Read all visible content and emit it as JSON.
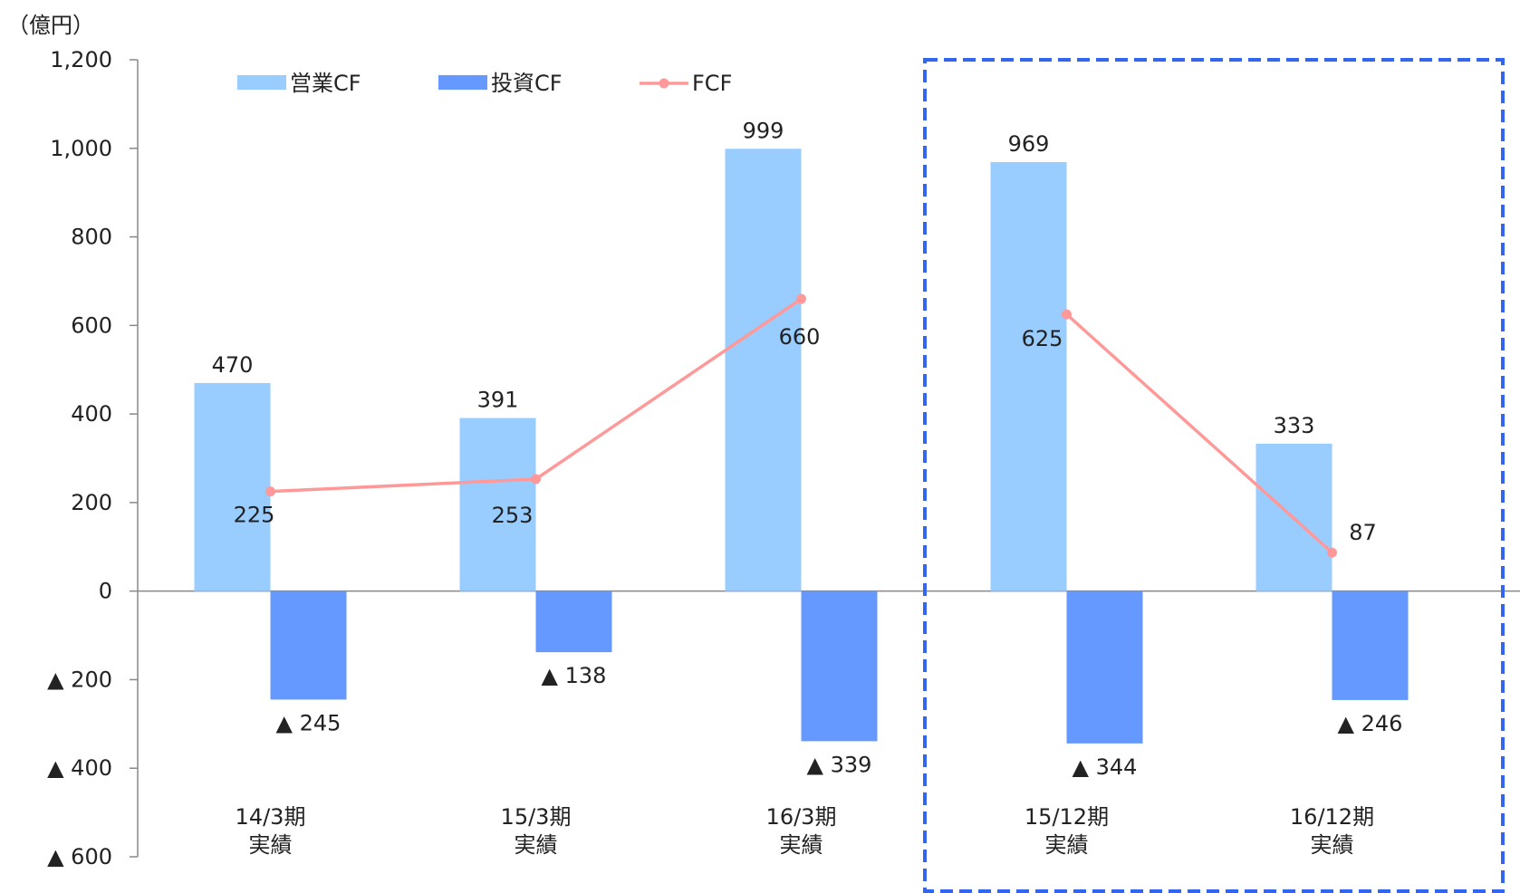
{
  "chart_data": {
    "type": "bar",
    "unit_label": "（億円）",
    "categories": [
      {
        "line1": "14/3期",
        "line2": "実績"
      },
      {
        "line1": "15/3期",
        "line2": "実績"
      },
      {
        "line1": "16/3期",
        "line2": "実績"
      },
      {
        "line1": "15/12期",
        "line2": "実績"
      },
      {
        "line1": "16/12期",
        "line2": "実績"
      }
    ],
    "series": [
      {
        "name": "営業CF",
        "type": "bar",
        "color": "#99ccff",
        "values": [
          470,
          391,
          999,
          969,
          333
        ],
        "labels": [
          "470",
          "391",
          "999",
          "969",
          "333"
        ]
      },
      {
        "name": "投資CF",
        "type": "bar",
        "color": "#6699ff",
        "values": [
          -245,
          -138,
          -339,
          -344,
          -246
        ],
        "labels": [
          "▲ 245",
          "▲ 138",
          "▲ 339",
          "▲ 344",
          "▲ 246"
        ]
      },
      {
        "name": "FCF",
        "type": "line",
        "color": "#ff9999",
        "values": [
          225,
          253,
          660,
          625,
          87
        ],
        "labels": [
          "225",
          "253",
          "660",
          "625",
          "87"
        ]
      }
    ],
    "y_ticks": [
      {
        "value": 1200,
        "label": "1,200"
      },
      {
        "value": 1000,
        "label": "1,000"
      },
      {
        "value": 800,
        "label": "800"
      },
      {
        "value": 600,
        "label": "600"
      },
      {
        "value": 400,
        "label": "400"
      },
      {
        "value": 200,
        "label": "200"
      },
      {
        "value": 0,
        "label": "0"
      },
      {
        "value": -200,
        "label": "▲ 200"
      },
      {
        "value": -400,
        "label": "▲ 400"
      },
      {
        "value": -600,
        "label": "▲ 600"
      }
    ],
    "ylim": [
      -600,
      1200
    ],
    "legend_position": "top-left",
    "grid": false,
    "fcf_line_segments": [
      [
        0,
        1,
        2
      ],
      [
        3,
        4
      ]
    ],
    "highlight_box": {
      "categories": [
        3,
        4
      ],
      "color": "#3366ee",
      "style": "dashed"
    }
  }
}
